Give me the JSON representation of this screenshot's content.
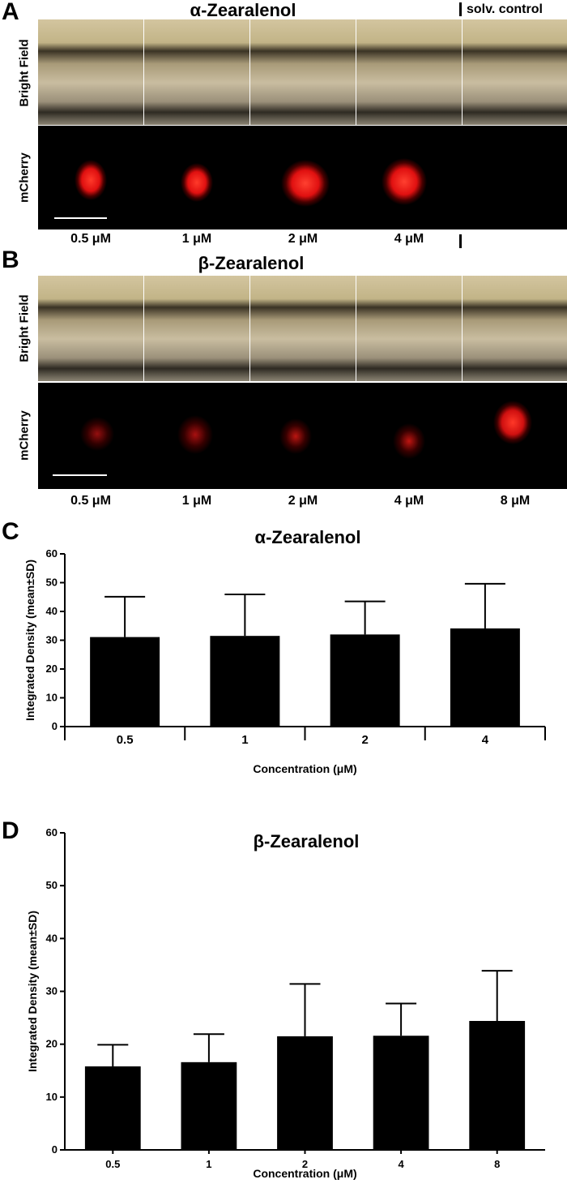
{
  "panel_a": {
    "letter": "A",
    "title": "α-Zearalenol",
    "control_label": "solv. control",
    "row_labels": [
      "Bright Field",
      "mCherry"
    ],
    "concentrations": [
      "0.5 μM",
      "1 μM",
      "2 μM",
      "4 μM"
    ]
  },
  "panel_b": {
    "letter": "B",
    "title": "β-Zearalenol",
    "row_labels": [
      "Bright Field",
      "mCherry"
    ],
    "concentrations": [
      "0.5 μM",
      "1 μM",
      "2 μM",
      "4 μM",
      "8 μM"
    ]
  },
  "chart_data": [
    {
      "panel": "C",
      "type": "bar",
      "title": "α-Zearalenol",
      "xlabel": "Concentration (μM)",
      "ylabel": "Integrated Density (mean±SD)",
      "categories": [
        "0.5",
        "1",
        "2",
        "4"
      ],
      "values": [
        31.1,
        31.5,
        32.0,
        34.1
      ],
      "errors": [
        14.0,
        14.4,
        11.5,
        15.5
      ],
      "ylim": [
        0,
        60
      ],
      "yticks": [
        "0",
        "10",
        "20",
        "30",
        "40",
        "50",
        "60"
      ]
    },
    {
      "panel": "D",
      "type": "bar",
      "title": "β-Zearalenol",
      "xlabel": "Concentration (μM)",
      "ylabel": "Integrated Density (mean±SD)",
      "categories": [
        "0.5",
        "1",
        "2",
        "4",
        "8"
      ],
      "values": [
        15.8,
        16.6,
        21.5,
        21.6,
        24.4
      ],
      "errors": [
        4.1,
        5.3,
        9.9,
        6.1,
        9.5
      ],
      "ylim": [
        0,
        60
      ],
      "yticks": [
        "0",
        "10",
        "20",
        "30",
        "40",
        "50",
        "60"
      ]
    }
  ]
}
